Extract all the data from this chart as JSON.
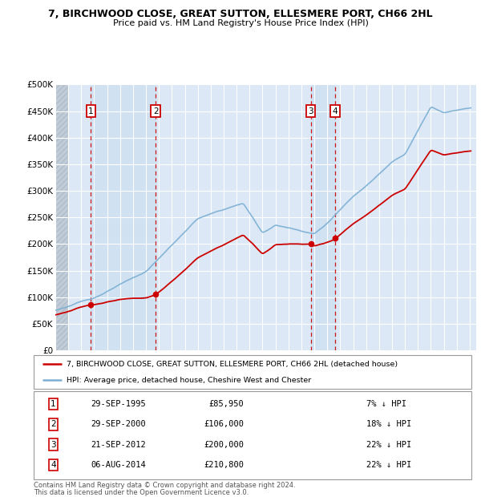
{
  "title": "7, BIRCHWOOD CLOSE, GREAT SUTTON, ELLESMERE PORT, CH66 2HL",
  "subtitle": "Price paid vs. HM Land Registry's House Price Index (HPI)",
  "legend_line1": "7, BIRCHWOOD CLOSE, GREAT SUTTON, ELLESMERE PORT, CH66 2HL (detached house)",
  "legend_line2": "HPI: Average price, detached house, Cheshire West and Chester",
  "footer1": "Contains HM Land Registry data © Crown copyright and database right 2024.",
  "footer2": "This data is licensed under the Open Government Licence v3.0.",
  "sales": [
    {
      "num": 1,
      "date": "29-SEP-1995",
      "price": 85950,
      "pct": "7% ↓ HPI",
      "year": 1995.75
    },
    {
      "num": 2,
      "date": "29-SEP-2000",
      "price": 106000,
      "pct": "18% ↓ HPI",
      "year": 2000.75
    },
    {
      "num": 3,
      "date": "21-SEP-2012",
      "price": 200000,
      "pct": "22% ↓ HPI",
      "year": 2012.72
    },
    {
      "num": 4,
      "date": "06-AUG-2014",
      "price": 210800,
      "pct": "22% ↓ HPI",
      "year": 2014.6
    }
  ],
  "hpi_color": "#7bafd4",
  "price_color": "#cc0000",
  "vline_color": "#cc0000",
  "background_color": "#dce8f5",
  "shade_color": "#c8ddf0",
  "hatch_color": "#b8c8d8",
  "ylim": [
    0,
    500000
  ],
  "yticks": [
    0,
    50000,
    100000,
    150000,
    200000,
    250000,
    300000,
    350000,
    400000,
    450000,
    500000
  ],
  "xlim_start": 1993,
  "xlim_end": 2025.5
}
